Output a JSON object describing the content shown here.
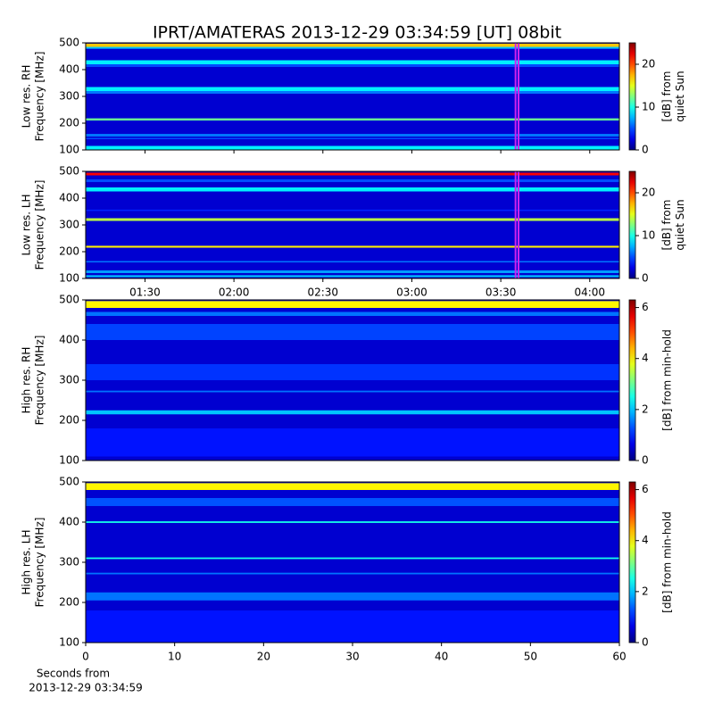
{
  "chart_data": [
    {
      "type": "heatmap",
      "title": "IPRT/AMATERAS 2013-12-29 03:34:59 [UT]   08bit",
      "ylabel": [
        "Low res. RH",
        "Frequency [MHz]"
      ],
      "ylim": [
        100,
        500
      ],
      "yticks": [
        100,
        200,
        300,
        400,
        500
      ],
      "xlim": [
        70,
        250
      ],
      "background": 2,
      "bands": [
        {
          "from": 485,
          "to": 497,
          "value": 17
        },
        {
          "from": 478,
          "to": 485,
          "value": 8
        },
        {
          "from": 420,
          "to": 435,
          "value": 9
        },
        {
          "from": 410,
          "to": 420,
          "value": 5
        },
        {
          "from": 320,
          "to": 335,
          "value": 9
        },
        {
          "from": 310,
          "to": 320,
          "value": 6
        },
        {
          "from": 210,
          "to": 218,
          "value": 12
        },
        {
          "from": 150,
          "to": 160,
          "value": 6
        },
        {
          "from": 140,
          "to": 145,
          "value": 5
        },
        {
          "from": 100,
          "to": 115,
          "value": 9
        }
      ],
      "markers": [
        214.98,
        215.98
      ],
      "marker_color": "#cc22ee",
      "clim": [
        0,
        25
      ],
      "colorbar_ticks": [
        0,
        10,
        20
      ],
      "colorbar_label": [
        "[dB] from",
        "quiet Sun"
      ]
    },
    {
      "type": "heatmap",
      "ylabel": [
        "Low res. LH",
        "Frequency [MHz]"
      ],
      "ylim": [
        100,
        500
      ],
      "yticks": [
        100,
        200,
        300,
        400,
        500
      ],
      "xlim": [
        70,
        250
      ],
      "xticks": [
        {
          "value": 90,
          "label": "01:30"
        },
        {
          "value": 120,
          "label": "02:00"
        },
        {
          "value": 150,
          "label": "02:30"
        },
        {
          "value": 180,
          "label": "03:00"
        },
        {
          "value": 210,
          "label": "03:30"
        },
        {
          "value": 240,
          "label": "04:00"
        }
      ],
      "background": 2,
      "bands": [
        {
          "from": 485,
          "to": 495,
          "value": 22
        },
        {
          "from": 460,
          "to": 470,
          "value": 5
        },
        {
          "from": 425,
          "to": 440,
          "value": 9
        },
        {
          "from": 352,
          "to": 357,
          "value": 4
        },
        {
          "from": 315,
          "to": 325,
          "value": 14
        },
        {
          "from": 215,
          "to": 222,
          "value": 16
        },
        {
          "from": 160,
          "to": 165,
          "value": 6
        },
        {
          "from": 120,
          "to": 130,
          "value": 7
        },
        {
          "from": 105,
          "to": 112,
          "value": 8
        }
      ],
      "markers": [
        214.98,
        215.98
      ],
      "marker_color": "#cc22ee",
      "clim": [
        0,
        25
      ],
      "colorbar_ticks": [
        0,
        10,
        20
      ],
      "colorbar_label": [
        "[dB] from",
        "quiet Sun"
      ]
    },
    {
      "type": "heatmap",
      "ylabel": [
        "High res. RH",
        "Frequency [MHz]"
      ],
      "ylim": [
        100,
        500
      ],
      "yticks": [
        100,
        200,
        300,
        400,
        500
      ],
      "xlim": [
        0,
        60
      ],
      "background": 0.5,
      "bands": [
        {
          "from": 480,
          "to": 497,
          "value": 4
        },
        {
          "from": 460,
          "to": 470,
          "value": 1.5
        },
        {
          "from": 400,
          "to": 440,
          "value": 1.2
        },
        {
          "from": 300,
          "to": 340,
          "value": 1.1
        },
        {
          "from": 270,
          "to": 274,
          "value": 1.5
        },
        {
          "from": 215,
          "to": 225,
          "value": 2
        },
        {
          "from": 110,
          "to": 180,
          "value": 0.9
        }
      ],
      "clim": [
        0,
        6.3
      ],
      "colorbar_ticks": [
        0,
        2,
        4,
        6
      ],
      "colorbar_label": [
        "[dB] from min-hold"
      ]
    },
    {
      "type": "heatmap",
      "ylabel": [
        "High res. LH",
        "Frequency [MHz]"
      ],
      "ylim": [
        100,
        500
      ],
      "yticks": [
        100,
        200,
        300,
        400,
        500
      ],
      "xlim": [
        0,
        60
      ],
      "xticks": [
        0,
        10,
        20,
        30,
        40,
        50,
        60
      ],
      "xlabel": [
        "Seconds from",
        "2013-12-29 03:34:59"
      ],
      "background": 0.5,
      "bands": [
        {
          "from": 480,
          "to": 497,
          "value": 4
        },
        {
          "from": 440,
          "to": 460,
          "value": 1.3
        },
        {
          "from": 398,
          "to": 402,
          "value": 2.5
        },
        {
          "from": 308,
          "to": 312,
          "value": 2.5
        },
        {
          "from": 270,
          "to": 274,
          "value": 1.5
        },
        {
          "from": 205,
          "to": 225,
          "value": 1.5
        },
        {
          "from": 100,
          "to": 180,
          "value": 0.9
        }
      ],
      "clim": [
        0,
        6.3
      ],
      "colorbar_ticks": [
        0,
        2,
        4,
        6
      ],
      "colorbar_label": [
        "[dB] from min-hold"
      ]
    }
  ]
}
